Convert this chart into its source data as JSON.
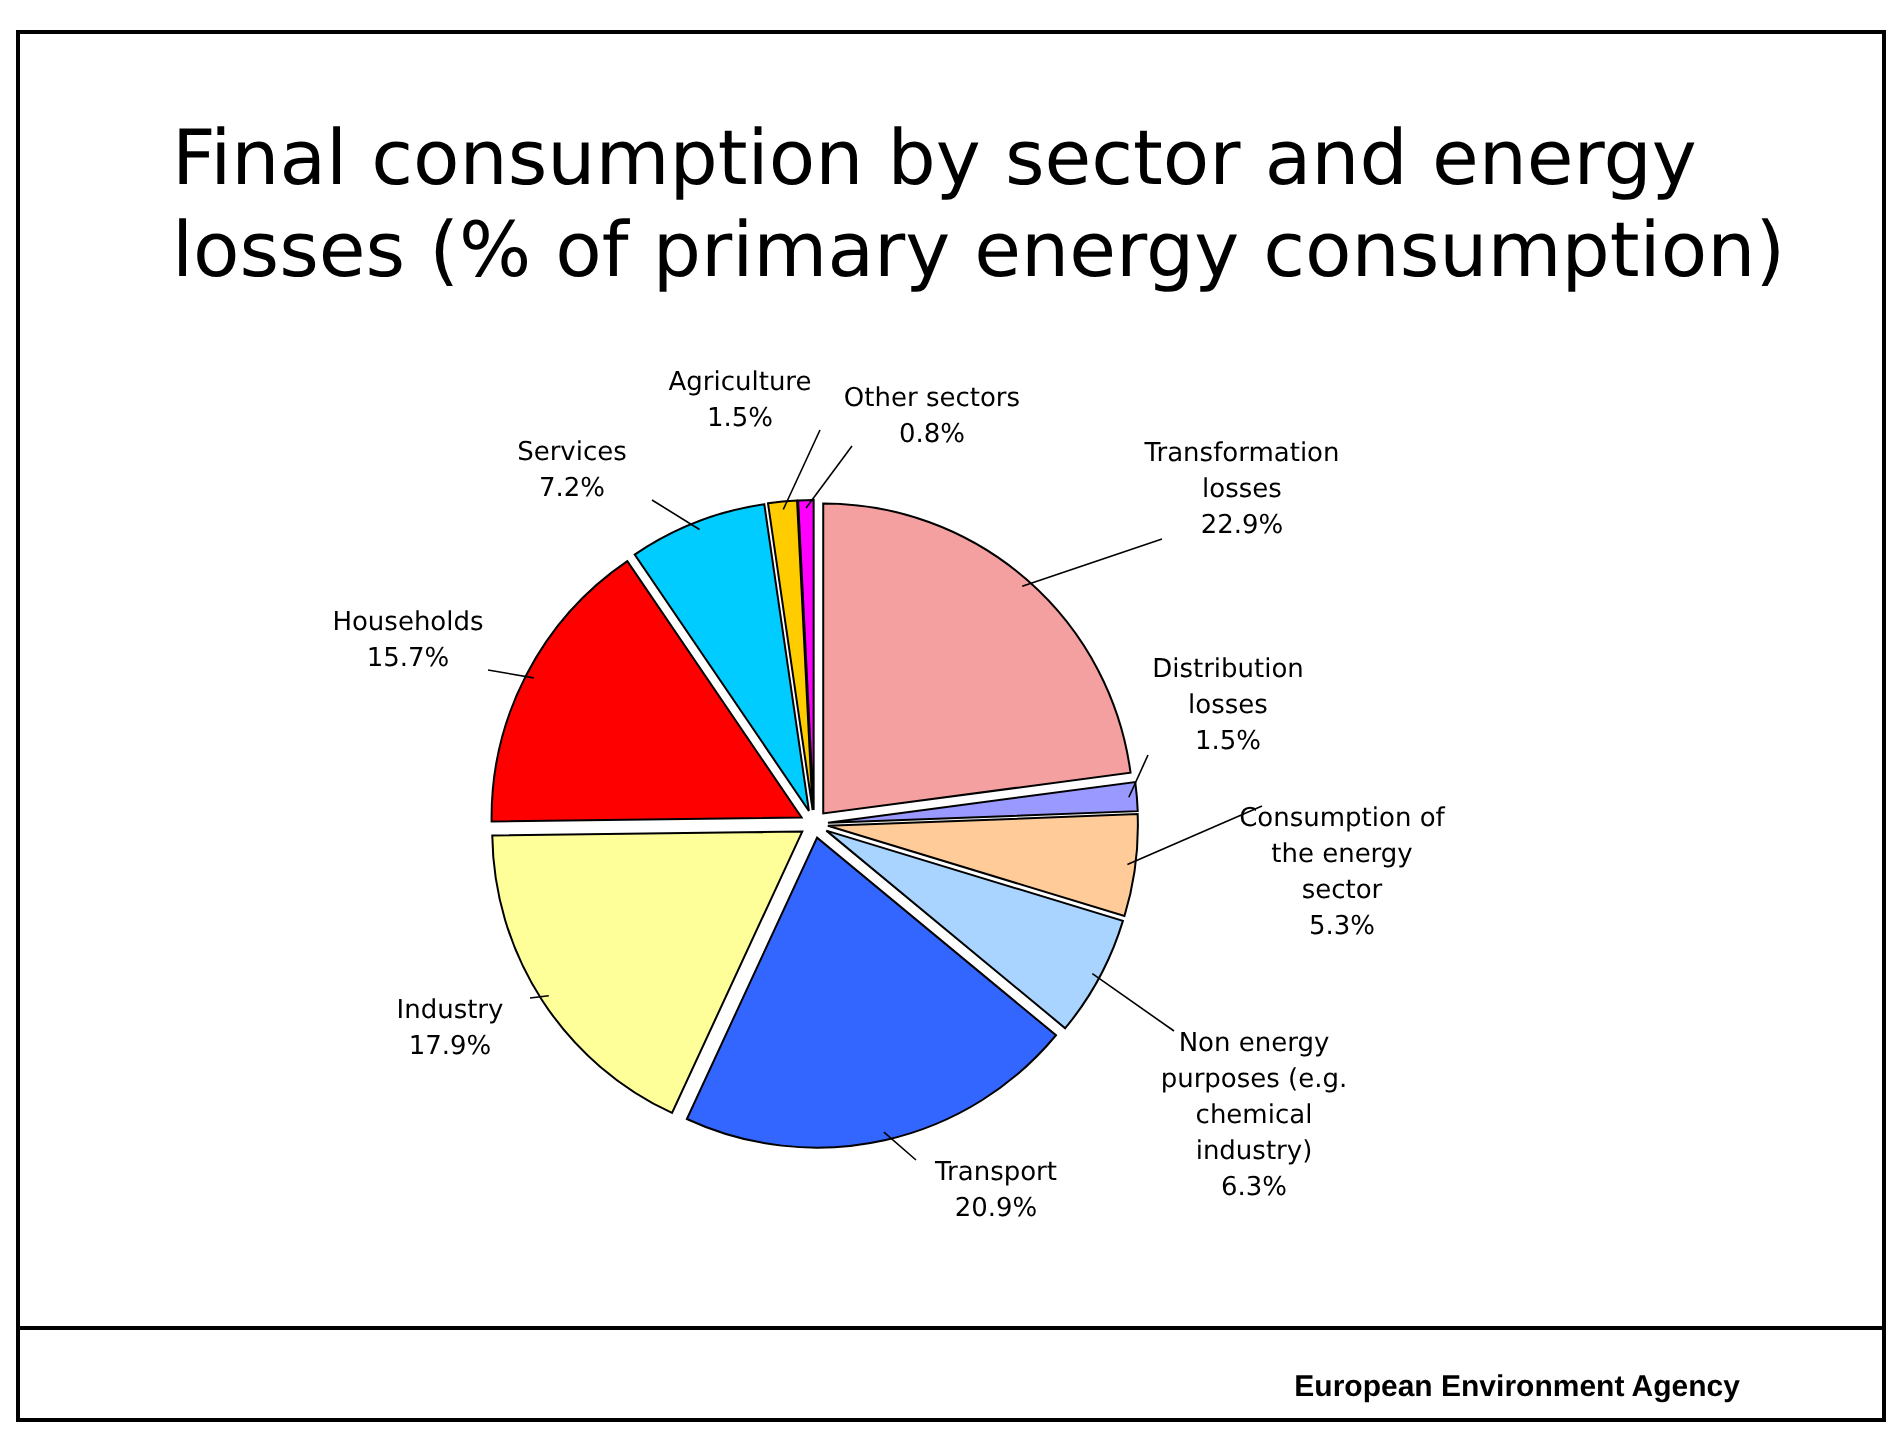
{
  "chart_data": {
    "type": "pie",
    "title": "Final consumption by sector and energy losses (% of primary energy consumption)",
    "categories": [
      "Transformation losses",
      "Distribution losses",
      "Consumption of the energy sector",
      "Non energy purposes (e.g. chemical industry)",
      "Transport",
      "Industry",
      "Households",
      "Services",
      "Agriculture",
      "Other sectors"
    ],
    "values": [
      22.9,
      1.5,
      5.3,
      6.3,
      20.9,
      17.9,
      15.7,
      7.2,
      1.5,
      0.8
    ],
    "colors": [
      "#f4a0a0",
      "#9999ff",
      "#ffcc99",
      "#a8d4ff",
      "#3366ff",
      "#ffff99",
      "#ff0000",
      "#00ccff",
      "#ffcc00",
      "#ff00ff"
    ],
    "value_labels": [
      "22.9%",
      "1.5%",
      "5.3%",
      "6.3%",
      "20.9%",
      "17.9%",
      "15.7%",
      "7.2%",
      "1.5%",
      "0.8%"
    ],
    "annotations": [
      "European Environment Agency"
    ]
  }
}
